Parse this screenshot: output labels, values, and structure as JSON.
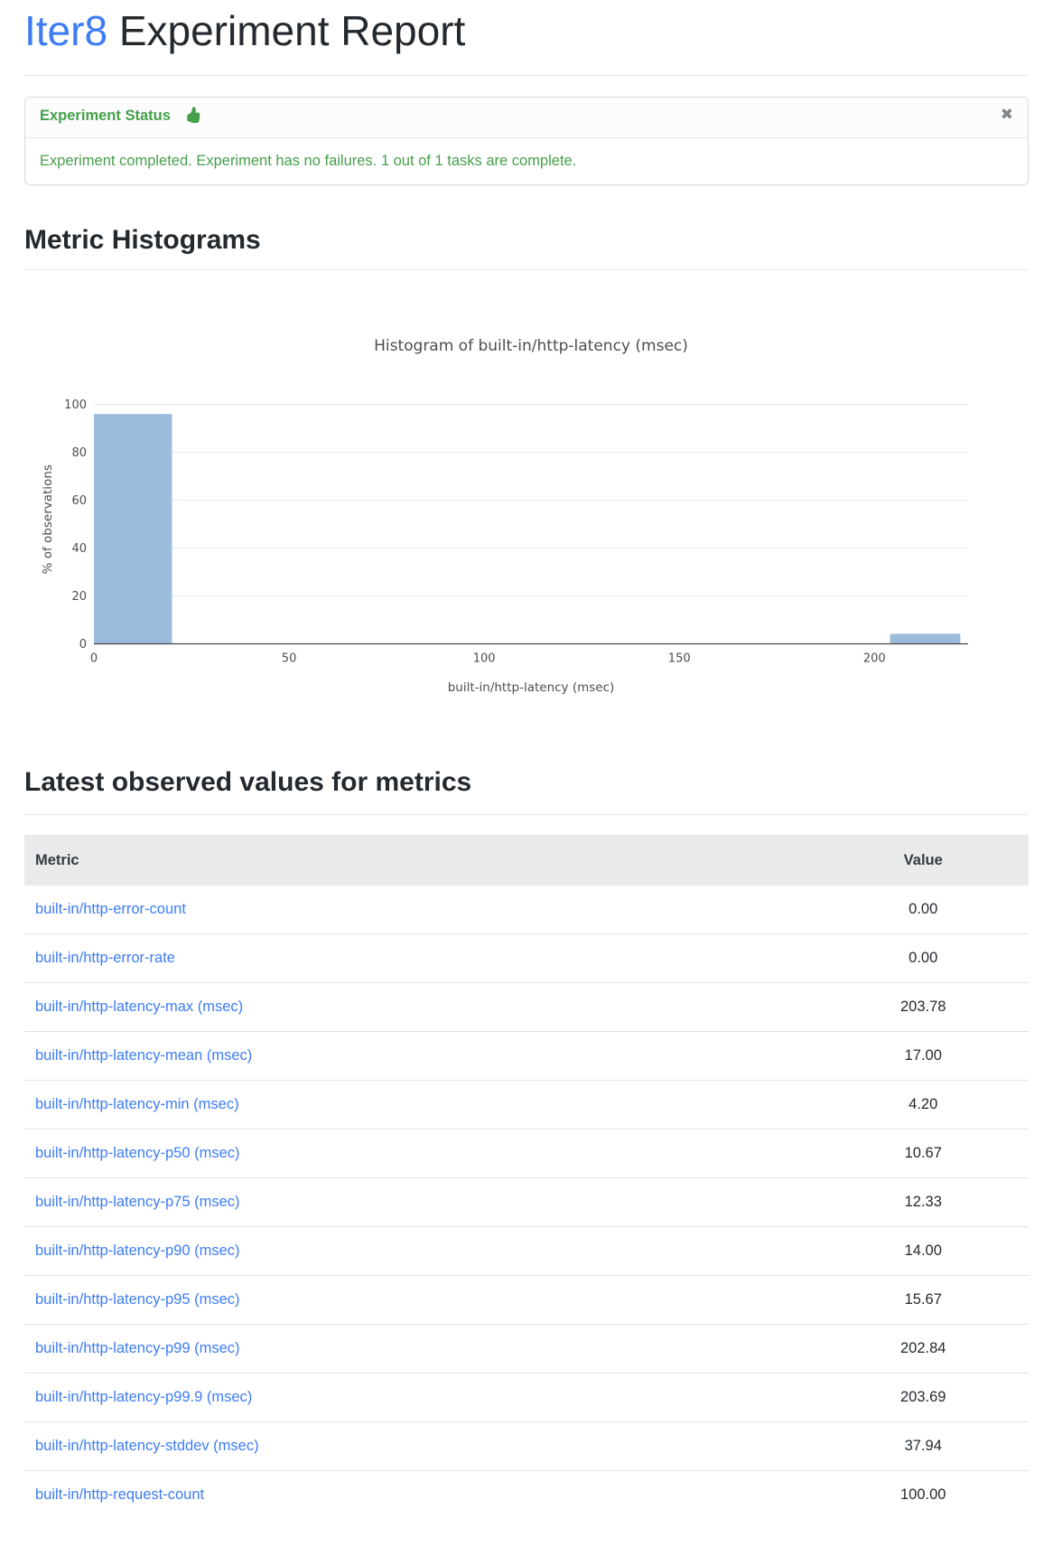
{
  "header": {
    "brand": "Iter8",
    "title_rest": " Experiment Report"
  },
  "alert": {
    "title": "Experiment Status",
    "icon": "thumbs-up-icon",
    "icon_color": "#45a049",
    "message": "Experiment completed. Experiment has no failures. 1 out of 1 tasks are complete.",
    "close_glyph": "✖",
    "text_color": "#45a049"
  },
  "sections": {
    "histograms_heading": "Metric Histograms",
    "latest_heading": "Latest observed values for metrics"
  },
  "chart_data": {
    "type": "histogram",
    "title": "Histogram of built-in/http-latency (msec)",
    "xlabel": "built-in/http-latency (msec)",
    "ylabel": "% of observations",
    "x_ticks": [
      0,
      50,
      100,
      150,
      200
    ],
    "y_ticks": [
      0,
      20,
      40,
      60,
      80,
      100
    ],
    "xlim": [
      0,
      224
    ],
    "ylim": [
      0,
      104
    ],
    "bars": [
      {
        "x0": 0,
        "x1": 20,
        "pct": 96.0
      },
      {
        "x0": 204,
        "x1": 222,
        "pct": 4.2
      }
    ],
    "bar_color": "#9cbcdb",
    "grid": "horizontal",
    "legend": "none",
    "text_color": "#4d4d4d",
    "grid_color": "#e9eaec",
    "axis_color": "#444444"
  },
  "table": {
    "columns": [
      "Metric",
      "Value"
    ],
    "rows": [
      {
        "metric": "built-in/http-error-count",
        "value": "0.00"
      },
      {
        "metric": "built-in/http-error-rate",
        "value": "0.00"
      },
      {
        "metric": "built-in/http-latency-max (msec)",
        "value": "203.78"
      },
      {
        "metric": "built-in/http-latency-mean (msec)",
        "value": "17.00"
      },
      {
        "metric": "built-in/http-latency-min (msec)",
        "value": "4.20"
      },
      {
        "metric": "built-in/http-latency-p50 (msec)",
        "value": "10.67"
      },
      {
        "metric": "built-in/http-latency-p75 (msec)",
        "value": "12.33"
      },
      {
        "metric": "built-in/http-latency-p90 (msec)",
        "value": "14.00"
      },
      {
        "metric": "built-in/http-latency-p95 (msec)",
        "value": "15.67"
      },
      {
        "metric": "built-in/http-latency-p99 (msec)",
        "value": "202.84"
      },
      {
        "metric": "built-in/http-latency-p99.9 (msec)",
        "value": "203.69"
      },
      {
        "metric": "built-in/http-latency-stddev (msec)",
        "value": "37.94"
      },
      {
        "metric": "built-in/http-request-count",
        "value": "100.00"
      }
    ]
  }
}
